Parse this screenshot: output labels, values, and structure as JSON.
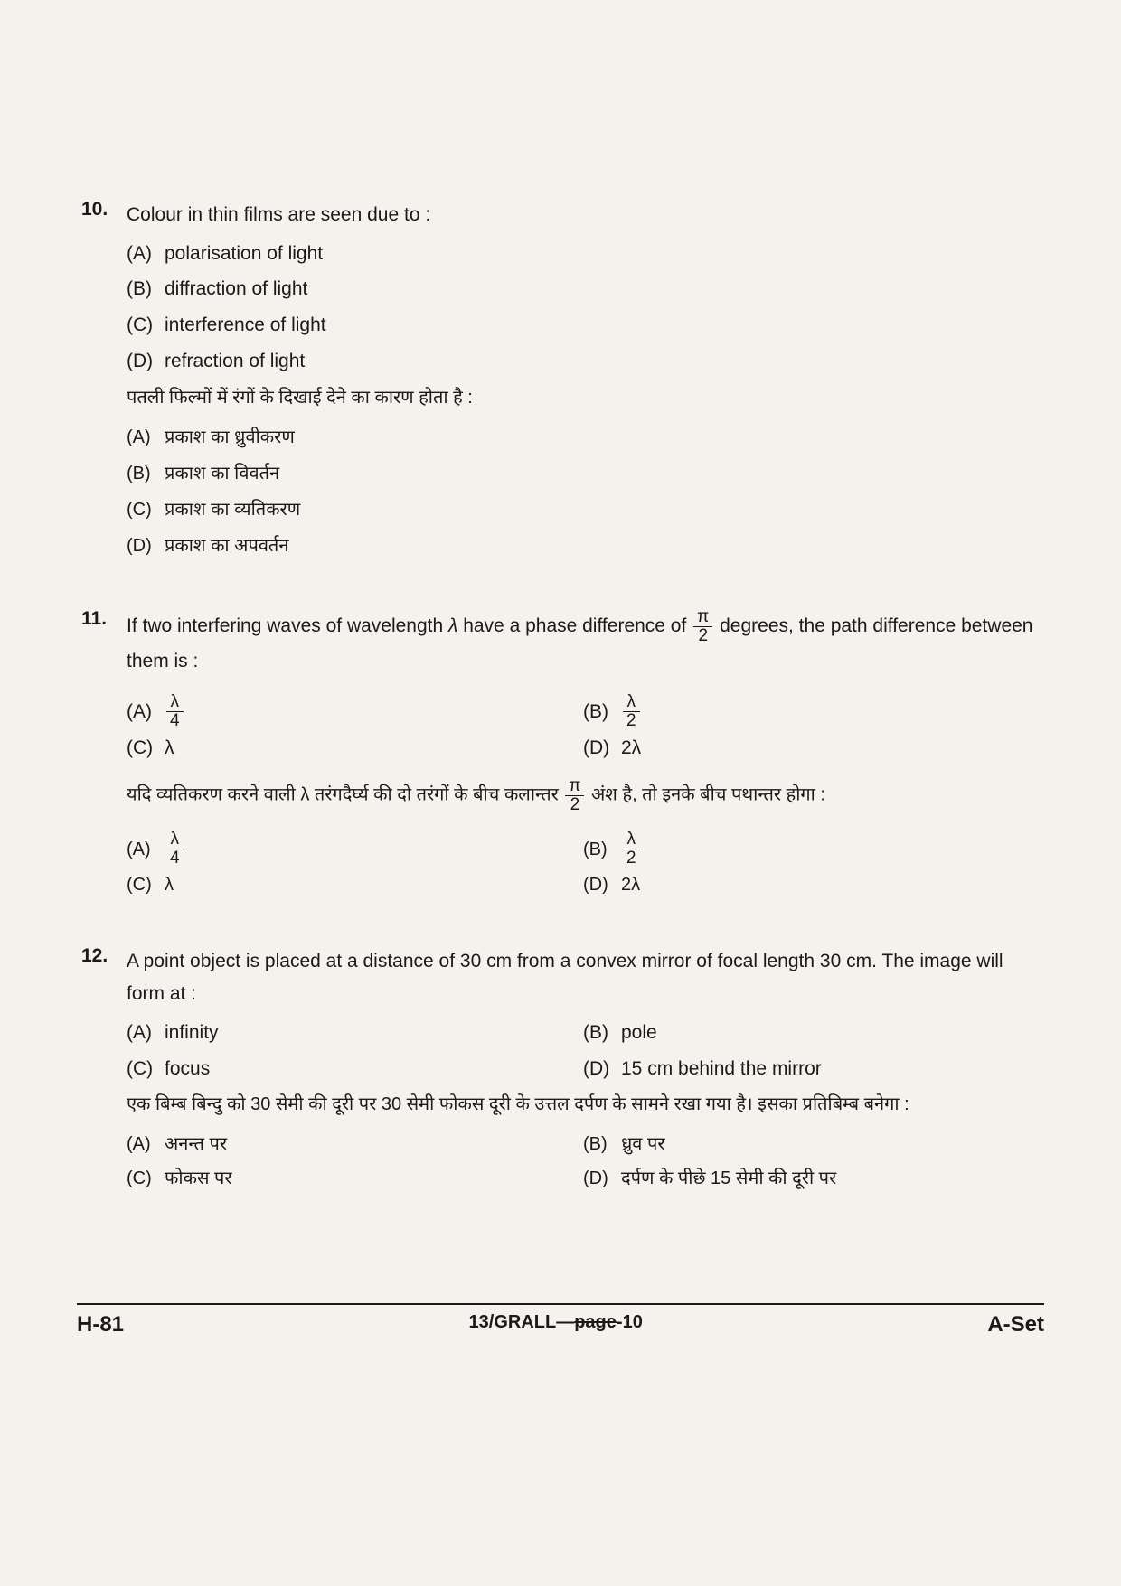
{
  "questions": [
    {
      "num": "10.",
      "text_en": "Colour in thin films are seen due to :",
      "options_en": [
        {
          "label": "(A)",
          "text": "polarisation of light"
        },
        {
          "label": "(B)",
          "text": "diffraction of light"
        },
        {
          "label": "(C)",
          "text": "interference of light"
        },
        {
          "label": "(D)",
          "text": "refraction of light"
        }
      ],
      "text_hi": "पतली फिल्मों में रंगों के दिखाई देने का कारण होता है :",
      "options_hi": [
        {
          "label": "(A)",
          "text": "प्रकाश का ध्रुवीकरण"
        },
        {
          "label": "(B)",
          "text": "प्रकाश का विवर्तन"
        },
        {
          "label": "(C)",
          "text": "प्रकाश का व्यतिकरण"
        },
        {
          "label": "(D)",
          "text": "प्रकाश का अपवर्तन"
        }
      ]
    },
    {
      "num": "11.",
      "text_en_pre": "If two interfering waves of wavelength ",
      "text_en_mid": " have a phase difference of ",
      "text_en_post": " degrees, the path difference between them is :",
      "lambda": "λ",
      "frac_pi": {
        "num": "π",
        "den": "2"
      },
      "pairs_en": [
        {
          "a_label": "(A)",
          "a_frac": {
            "num": "λ",
            "den": "4"
          },
          "b_label": "(B)",
          "b_frac": {
            "num": "λ",
            "den": "2"
          }
        },
        {
          "a_label": "(C)",
          "a_text": "λ",
          "b_label": "(D)",
          "b_text": "2λ"
        }
      ],
      "text_hi_pre": "यदि व्यतिकरण करने वाली λ तरंगदैर्घ्य की दो तरंगों के बीच कलान्तर ",
      "text_hi_post": " अंश है, तो इनके बीच पथान्तर होगा :",
      "pairs_hi": [
        {
          "a_label": "(A)",
          "a_frac": {
            "num": "λ",
            "den": "4"
          },
          "b_label": "(B)",
          "b_frac": {
            "num": "λ",
            "den": "2"
          }
        },
        {
          "a_label": "(C)",
          "a_text": "λ",
          "b_label": "(D)",
          "b_text": "2λ"
        }
      ]
    },
    {
      "num": "12.",
      "text_en": "A point object is placed at a distance of 30 cm from a convex mirror of focal length 30 cm. The image will form at :",
      "pairs_en": [
        {
          "a_label": "(A)",
          "a_text": "infinity",
          "b_label": "(B)",
          "b_text": "pole"
        },
        {
          "a_label": "(C)",
          "a_text": "focus",
          "b_label": "(D)",
          "b_text": "15 cm behind the mirror"
        }
      ],
      "text_hi": "एक बिम्ब बिन्दु को 30 सेमी की दूरी पर 30 सेमी फोकस दूरी के उत्तल दर्पण के सामने रखा गया है। इसका प्रतिबिम्ब बनेगा :",
      "pairs_hi": [
        {
          "a_label": "(A)",
          "a_text": "अनन्त पर",
          "b_label": "(B)",
          "b_text": "ध्रुव पर"
        },
        {
          "a_label": "(C)",
          "a_text": "फोकस पर",
          "b_label": "(D)",
          "b_text": "दर्पण के पीछे 15 सेमी की दूरी पर"
        }
      ]
    }
  ],
  "footer": {
    "left": "H-81",
    "center_pre": "13/GRALL",
    "center_strike": "page",
    "center_post": "-10",
    "right": "A-Set"
  }
}
